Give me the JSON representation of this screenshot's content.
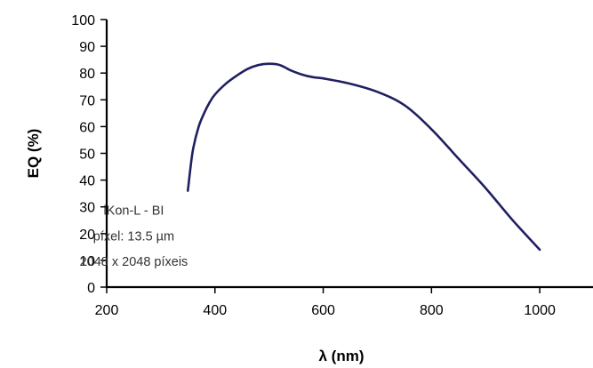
{
  "chart_data": {
    "type": "line",
    "title": "",
    "xlabel": "λ (nm)",
    "ylabel": "EQ (%)",
    "xlim": [
      200,
      1100
    ],
    "ylim": [
      0,
      100
    ],
    "x_ticks": [
      200,
      400,
      600,
      800,
      1000
    ],
    "y_ticks": [
      0,
      10,
      20,
      30,
      40,
      50,
      60,
      70,
      80,
      90,
      100
    ],
    "grid": false,
    "legend": "none",
    "series": [
      {
        "line_color": "#1f2060",
        "x": [
          350,
          355,
          360,
          370,
          380,
          390,
          400,
          420,
          440,
          460,
          480,
          500,
          520,
          540,
          560,
          580,
          600,
          650,
          700,
          750,
          800,
          850,
          900,
          950,
          1000
        ],
        "y": [
          36,
          45,
          52,
          60,
          65,
          69,
          72,
          76,
          79,
          81.5,
          83,
          83.5,
          83,
          81,
          79.5,
          78.5,
          78,
          76,
          73,
          68,
          59,
          48,
          37,
          25,
          14
        ]
      }
    ],
    "annotation": {
      "lines": [
        "iKon-L - BI",
        "píxel: 13.5 µm",
        "2048 x 2048 píxeis"
      ],
      "anchor_x": 250,
      "anchor_y": [
        27,
        17.5,
        8
      ]
    }
  }
}
